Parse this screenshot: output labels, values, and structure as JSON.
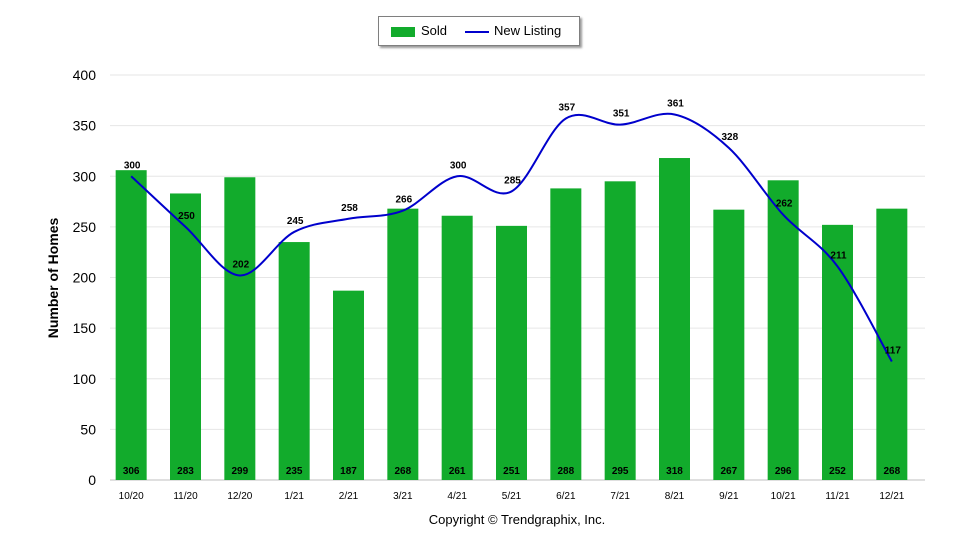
{
  "chart_data": {
    "type": "bar",
    "categories": [
      "10/20",
      "11/20",
      "12/20",
      "1/21",
      "2/21",
      "3/21",
      "4/21",
      "5/21",
      "6/21",
      "7/21",
      "8/21",
      "9/21",
      "10/21",
      "11/21",
      "12/21"
    ],
    "series": [
      {
        "name": "Sold",
        "type": "bar",
        "color": "#12ab2c",
        "values": [
          306,
          283,
          299,
          235,
          187,
          268,
          261,
          251,
          288,
          295,
          318,
          267,
          296,
          252,
          268
        ]
      },
      {
        "name": "New Listing",
        "type": "line",
        "color": "#0000cc",
        "values": [
          300,
          250,
          202,
          245,
          258,
          266,
          300,
          285,
          357,
          351,
          361,
          328,
          262,
          211,
          117
        ]
      }
    ],
    "ylabel": "Number of Homes",
    "ylim": [
      0,
      400
    ],
    "yticks": [
      0,
      50,
      100,
      150,
      200,
      250,
      300,
      350,
      400
    ],
    "grid": true,
    "legend": "top-center"
  },
  "footer": {
    "copyright": "Copyright © Trendgraphix, Inc."
  }
}
